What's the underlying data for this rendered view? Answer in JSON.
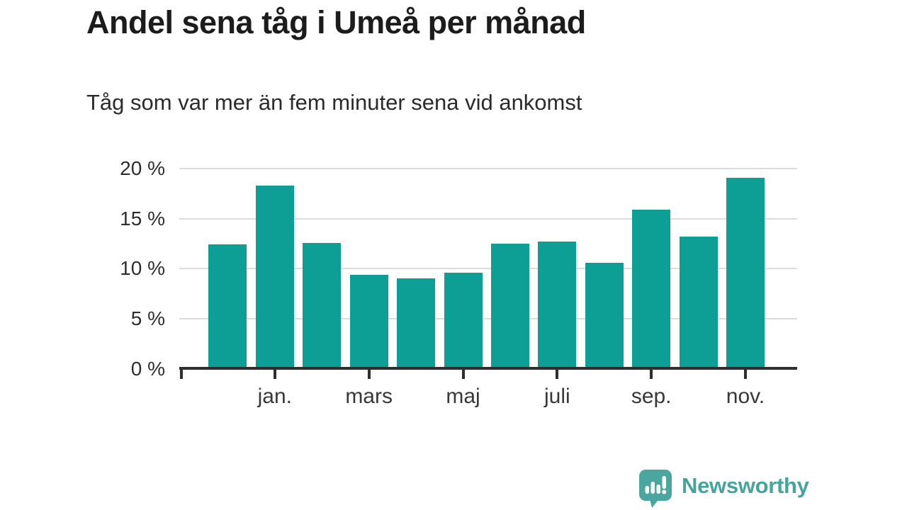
{
  "chart": {
    "title": "Andel sena tåg i Umeå per månad",
    "subtitle": "Tåg som var mer än fem minuter sena vid ankomst"
  },
  "chart_data": {
    "type": "bar",
    "categories": [
      "",
      "jan.",
      "",
      "mars",
      "",
      "maj",
      "",
      "juli",
      "",
      "sep.",
      "",
      "nov."
    ],
    "values": [
      12.4,
      18.3,
      12.6,
      9.4,
      9.0,
      9.6,
      12.5,
      12.7,
      10.6,
      15.9,
      13.2,
      19.1
    ],
    "title": "Andel sena tåg i Umeå per månad",
    "subtitle": "Tåg som var mer än fem minuter sena vid ankomst",
    "xlabel": "",
    "ylabel": "",
    "ylim": [
      0,
      20
    ],
    "y_ticks": [
      0,
      5,
      10,
      15,
      20
    ],
    "y_tick_labels": [
      "0 %",
      "5 %",
      "10 %",
      "15 %",
      "20 %"
    ],
    "grid": true,
    "legend": "none",
    "bar_color": "#0d9e96",
    "gridline_color": "#dcdcdc",
    "axis_color": "#2e2e2e"
  },
  "footer": {
    "brand": "Newsworthy",
    "brand_color": "#46a49d"
  }
}
